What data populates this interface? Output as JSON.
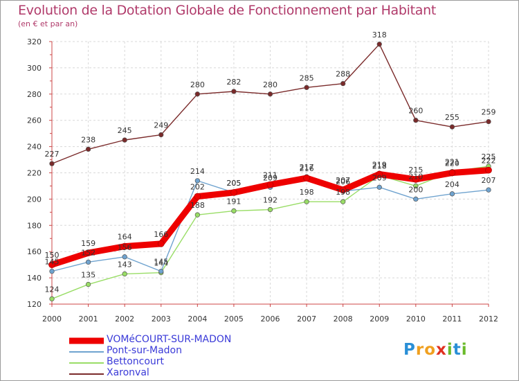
{
  "header": {
    "title": "Evolution de la Dotation Globale de Fonctionnement par Habitant",
    "subtitle": "(en € et par an)"
  },
  "chart_data": {
    "type": "line",
    "title": "Evolution de la Dotation Globale de Fonctionnement par Habitant",
    "subtitle": "(en € et par an)",
    "xlabel": "",
    "ylabel": "",
    "categories": [
      "2000",
      "2001",
      "2002",
      "2003",
      "2004",
      "2005",
      "2006",
      "2007",
      "2008",
      "2009",
      "2010",
      "2011",
      "2012"
    ],
    "ylim": [
      120,
      320
    ],
    "yticks": [
      120,
      140,
      160,
      180,
      200,
      220,
      240,
      260,
      280,
      300,
      320
    ],
    "grid": true,
    "legend_position": "bottom-left",
    "series": [
      {
        "name": "Xaronval",
        "color": "#7a2a2a",
        "values": [
          227,
          238,
          245,
          249,
          280,
          282,
          280,
          285,
          288,
          318,
          260,
          255,
          259
        ]
      },
      {
        "name": "Bettoncourt",
        "color": "#99dd66",
        "values": [
          124,
          135,
          143,
          144,
          188,
          191,
          192,
          198,
          198,
          218,
          210,
          221,
          225
        ]
      },
      {
        "name": "Pont-sur-Madon",
        "color": "#6fa3cf",
        "values": [
          145,
          152,
          156,
          145,
          214,
          205,
          209,
          217,
          206,
          209,
          200,
          204,
          207
        ]
      },
      {
        "name": "VOMéCOURT-SUR-MADON",
        "color": "#ee0000",
        "values": [
          150,
          159,
          164,
          166,
          202,
          205,
          211,
          216,
          207,
          219,
          215,
          220,
          222
        ]
      }
    ]
  },
  "legend": {
    "items": [
      {
        "label": "VOMéCOURT-SUR-MADON",
        "color": "#ee0000"
      },
      {
        "label": "Pont-sur-Madon",
        "color": "#6fa3cf"
      },
      {
        "label": "Bettoncourt",
        "color": "#99dd66"
      },
      {
        "label": "Xaronval",
        "color": "#7a2a2a"
      }
    ]
  },
  "logo": {
    "letters": [
      "P",
      "r",
      "o",
      "x",
      "i",
      "t",
      "i"
    ],
    "colors": [
      "#2a8fd6",
      "#f0a020",
      "#f0a020",
      "#e03020",
      "#6aba2a",
      "#2a8fd6",
      "#6aba2a"
    ]
  }
}
